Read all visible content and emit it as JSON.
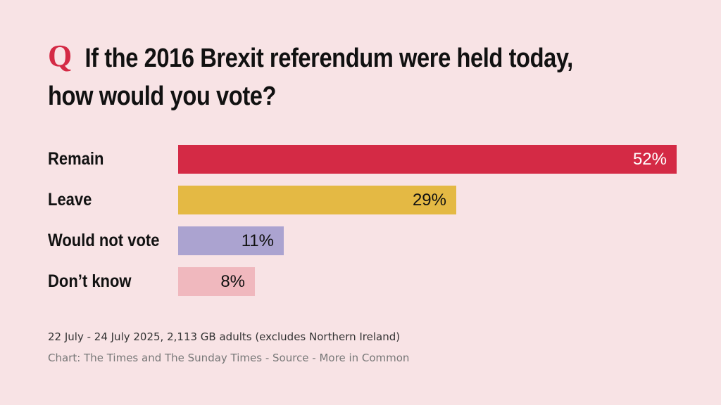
{
  "header": {
    "q_mark": "Q",
    "title": "If the 2016 Brexit referendum were held today, how would you vote?"
  },
  "colors": {
    "background": "#f8e3e5",
    "accent": "#d42a45"
  },
  "chart_data": {
    "type": "bar",
    "orientation": "horizontal",
    "title": "If the 2016 Brexit referendum were held today, how would you vote?",
    "categories": [
      "Remain",
      "Leave",
      "Would not vote",
      "Don’t know"
    ],
    "values": [
      52,
      29,
      11,
      8
    ],
    "value_labels": [
      "52%",
      "29%",
      "11%",
      "8%"
    ],
    "colors": [
      "#d42a45",
      "#e4b944",
      "#aba3d0",
      "#f0b8be"
    ],
    "label_colors": [
      "#ffffff",
      "#111111",
      "#111111",
      "#111111"
    ],
    "xlim": [
      0,
      52
    ],
    "grid": false,
    "legend": "none"
  },
  "footer": {
    "note": "22 July - 24 July 2025, 2,113 GB adults (excludes Northern Ireland)",
    "credit": "Chart: The Times and The Sunday Times - Source - More in Common"
  }
}
